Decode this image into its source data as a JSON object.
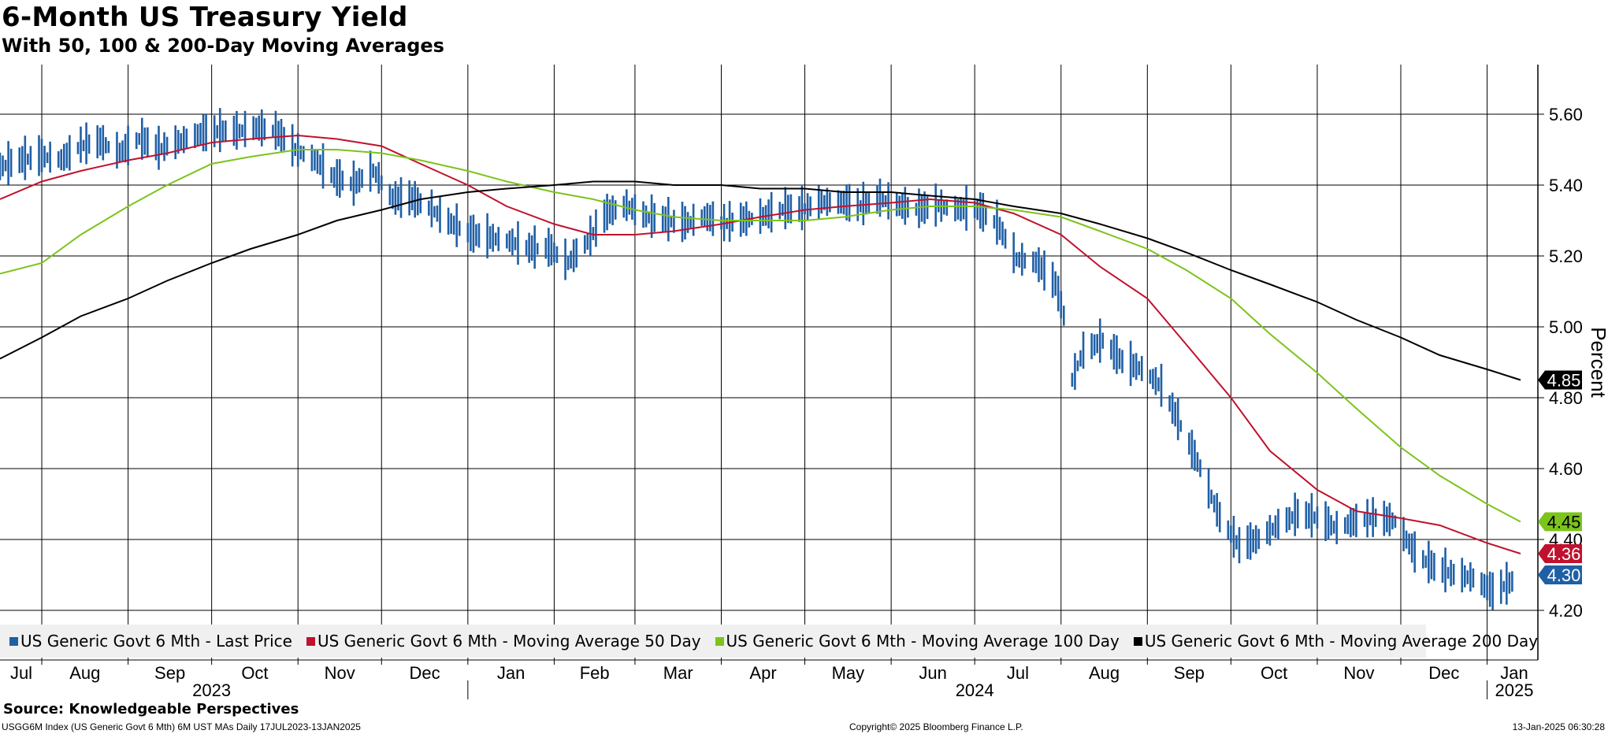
{
  "title": "6-Month US Treasury Yield",
  "subtitle": "With 50, 100 & 200-Day Moving Averages",
  "source": "Source: Knowledgeable Perspectives",
  "footer_left": "USGG6M Index (US Generic Govt 6 Mth) 6M UST MAs  Daily 17JUL2023-13JAN2025",
  "footer_mid": "Copyright© 2025 Bloomberg Finance L.P.",
  "footer_right": "13-Jan-2025 06:30:28",
  "colors": {
    "price": "#1f5fa6",
    "ma50": "#c0122e",
    "ma100": "#7cc41c",
    "ma200": "#000000"
  },
  "chart_data": {
    "type": "line",
    "ylabel": "Percent",
    "ylim": [
      4.06,
      5.74
    ],
    "yticks": [
      "4.20",
      "4.40",
      "4.60",
      "4.80",
      "5.00",
      "5.20",
      "5.40",
      "5.60"
    ],
    "xlim": [
      "2023-07-17",
      "2025-01-13"
    ],
    "month_ticks": [
      {
        "label": "Jul",
        "date": "2023-07-01"
      },
      {
        "label": "Aug",
        "date": "2023-08-01"
      },
      {
        "label": "Sep",
        "date": "2023-09-01"
      },
      {
        "label": "Oct",
        "date": "2023-10-01"
      },
      {
        "label": "Nov",
        "date": "2023-11-01"
      },
      {
        "label": "Dec",
        "date": "2023-12-01"
      },
      {
        "label": "Jan",
        "date": "2024-01-01"
      },
      {
        "label": "Feb",
        "date": "2024-02-01"
      },
      {
        "label": "Mar",
        "date": "2024-03-01"
      },
      {
        "label": "Apr",
        "date": "2024-04-01"
      },
      {
        "label": "May",
        "date": "2024-05-01"
      },
      {
        "label": "Jun",
        "date": "2024-06-01"
      },
      {
        "label": "Jul",
        "date": "2024-07-01"
      },
      {
        "label": "Aug",
        "date": "2024-08-01"
      },
      {
        "label": "Sep",
        "date": "2024-09-01"
      },
      {
        "label": "Oct",
        "date": "2024-10-01"
      },
      {
        "label": "Nov",
        "date": "2024-11-01"
      },
      {
        "label": "Dec",
        "date": "2024-12-01"
      },
      {
        "label": "Jan",
        "date": "2025-01-01"
      }
    ],
    "year_labels": [
      {
        "label": "2023",
        "date": "2023-10-01"
      },
      {
        "label": "2024",
        "date": "2024-07-01"
      },
      {
        "label": "2025",
        "date": "2025-01-08"
      }
    ],
    "year_separators": [
      "2024-01-01",
      "2025-01-01"
    ],
    "grid": true,
    "legend_position": "bottom",
    "series": [
      {
        "name": "US Generic Govt 6 Mth - Last Price",
        "color_key": "price",
        "style": "bars",
        "last_label": "4.30",
        "points": [
          [
            "2023-07-17",
            5.45
          ],
          [
            "2023-07-25",
            5.47
          ],
          [
            "2023-08-01",
            5.48
          ],
          [
            "2023-08-08",
            5.47
          ],
          [
            "2023-08-15",
            5.51
          ],
          [
            "2023-08-22",
            5.52
          ],
          [
            "2023-08-29",
            5.49
          ],
          [
            "2023-09-05",
            5.53
          ],
          [
            "2023-09-12",
            5.5
          ],
          [
            "2023-09-19",
            5.52
          ],
          [
            "2023-09-26",
            5.54
          ],
          [
            "2023-10-03",
            5.55
          ],
          [
            "2023-10-10",
            5.55
          ],
          [
            "2023-10-17",
            5.56
          ],
          [
            "2023-10-24",
            5.55
          ],
          [
            "2023-10-31",
            5.5
          ],
          [
            "2023-11-07",
            5.47
          ],
          [
            "2023-11-14",
            5.42
          ],
          [
            "2023-11-21",
            5.4
          ],
          [
            "2023-11-28",
            5.44
          ],
          [
            "2023-12-05",
            5.36
          ],
          [
            "2023-12-12",
            5.36
          ],
          [
            "2023-12-19",
            5.33
          ],
          [
            "2023-12-26",
            5.29
          ],
          [
            "2024-01-02",
            5.26
          ],
          [
            "2024-01-09",
            5.25
          ],
          [
            "2024-01-16",
            5.24
          ],
          [
            "2024-01-23",
            5.22
          ],
          [
            "2024-01-30",
            5.22
          ],
          [
            "2024-02-06",
            5.18
          ],
          [
            "2024-02-13",
            5.24
          ],
          [
            "2024-02-20",
            5.32
          ],
          [
            "2024-02-27",
            5.34
          ],
          [
            "2024-03-05",
            5.31
          ],
          [
            "2024-03-12",
            5.3
          ],
          [
            "2024-03-19",
            5.29
          ],
          [
            "2024-03-26",
            5.31
          ],
          [
            "2024-04-02",
            5.29
          ],
          [
            "2024-04-09",
            5.3
          ],
          [
            "2024-04-16",
            5.31
          ],
          [
            "2024-04-23",
            5.33
          ],
          [
            "2024-04-30",
            5.33
          ],
          [
            "2024-05-07",
            5.35
          ],
          [
            "2024-05-14",
            5.35
          ],
          [
            "2024-05-21",
            5.34
          ],
          [
            "2024-05-28",
            5.36
          ],
          [
            "2024-06-04",
            5.34
          ],
          [
            "2024-06-11",
            5.33
          ],
          [
            "2024-06-18",
            5.34
          ],
          [
            "2024-06-25",
            5.33
          ],
          [
            "2024-07-02",
            5.33
          ],
          [
            "2024-07-09",
            5.29
          ],
          [
            "2024-07-16",
            5.19
          ],
          [
            "2024-07-23",
            5.18
          ],
          [
            "2024-07-30",
            5.12
          ],
          [
            "2024-08-02",
            5.03
          ],
          [
            "2024-08-05",
            4.85
          ],
          [
            "2024-08-09",
            4.93
          ],
          [
            "2024-08-16",
            4.96
          ],
          [
            "2024-08-23",
            4.9
          ],
          [
            "2024-08-30",
            4.88
          ],
          [
            "2024-09-06",
            4.83
          ],
          [
            "2024-09-13",
            4.72
          ],
          [
            "2024-09-20",
            4.6
          ],
          [
            "2024-09-27",
            4.46
          ],
          [
            "2024-10-04",
            4.38
          ],
          [
            "2024-10-11",
            4.4
          ],
          [
            "2024-10-18",
            4.44
          ],
          [
            "2024-10-25",
            4.47
          ],
          [
            "2024-11-01",
            4.46
          ],
          [
            "2024-11-08",
            4.43
          ],
          [
            "2024-11-15",
            4.45
          ],
          [
            "2024-11-22",
            4.46
          ],
          [
            "2024-11-29",
            4.45
          ],
          [
            "2024-12-06",
            4.36
          ],
          [
            "2024-12-13",
            4.32
          ],
          [
            "2024-12-20",
            4.3
          ],
          [
            "2024-12-27",
            4.29
          ],
          [
            "2025-01-03",
            4.25
          ],
          [
            "2025-01-10",
            4.28
          ],
          [
            "2025-01-13",
            4.3
          ]
        ]
      },
      {
        "name": "US Generic Govt 6 Mth - Moving Average 50 Day",
        "color_key": "ma50",
        "style": "line",
        "last_label": "4.36",
        "points": [
          [
            "2023-07-17",
            5.36
          ],
          [
            "2023-08-01",
            5.41
          ],
          [
            "2023-08-15",
            5.44
          ],
          [
            "2023-09-01",
            5.47
          ],
          [
            "2023-09-15",
            5.49
          ],
          [
            "2023-10-01",
            5.52
          ],
          [
            "2023-10-15",
            5.53
          ],
          [
            "2023-11-01",
            5.54
          ],
          [
            "2023-11-15",
            5.53
          ],
          [
            "2023-12-01",
            5.51
          ],
          [
            "2023-12-15",
            5.46
          ],
          [
            "2024-01-01",
            5.4
          ],
          [
            "2024-01-15",
            5.34
          ],
          [
            "2024-02-01",
            5.29
          ],
          [
            "2024-02-15",
            5.26
          ],
          [
            "2024-03-01",
            5.26
          ],
          [
            "2024-03-15",
            5.27
          ],
          [
            "2024-04-01",
            5.29
          ],
          [
            "2024-04-15",
            5.31
          ],
          [
            "2024-05-01",
            5.33
          ],
          [
            "2024-05-15",
            5.34
          ],
          [
            "2024-06-01",
            5.35
          ],
          [
            "2024-06-15",
            5.36
          ],
          [
            "2024-07-01",
            5.35
          ],
          [
            "2024-07-15",
            5.32
          ],
          [
            "2024-08-01",
            5.26
          ],
          [
            "2024-08-15",
            5.17
          ],
          [
            "2024-09-01",
            5.08
          ],
          [
            "2024-09-15",
            4.95
          ],
          [
            "2024-10-01",
            4.8
          ],
          [
            "2024-10-15",
            4.65
          ],
          [
            "2024-11-01",
            4.54
          ],
          [
            "2024-11-15",
            4.48
          ],
          [
            "2024-12-01",
            4.46
          ],
          [
            "2024-12-15",
            4.44
          ],
          [
            "2025-01-01",
            4.39
          ],
          [
            "2025-01-13",
            4.36
          ]
        ]
      },
      {
        "name": "US Generic Govt 6 Mth - Moving Average 100 Day",
        "color_key": "ma100",
        "style": "line",
        "last_label": "4.45",
        "points": [
          [
            "2023-07-17",
            5.15
          ],
          [
            "2023-08-01",
            5.18
          ],
          [
            "2023-08-15",
            5.26
          ],
          [
            "2023-09-01",
            5.34
          ],
          [
            "2023-09-15",
            5.4
          ],
          [
            "2023-10-01",
            5.46
          ],
          [
            "2023-10-15",
            5.48
          ],
          [
            "2023-11-01",
            5.5
          ],
          [
            "2023-11-15",
            5.5
          ],
          [
            "2023-12-01",
            5.49
          ],
          [
            "2023-12-15",
            5.47
          ],
          [
            "2024-01-01",
            5.44
          ],
          [
            "2024-01-15",
            5.41
          ],
          [
            "2024-02-01",
            5.38
          ],
          [
            "2024-02-15",
            5.36
          ],
          [
            "2024-03-01",
            5.33
          ],
          [
            "2024-03-15",
            5.31
          ],
          [
            "2024-04-01",
            5.3
          ],
          [
            "2024-04-15",
            5.3
          ],
          [
            "2024-05-01",
            5.3
          ],
          [
            "2024-05-15",
            5.31
          ],
          [
            "2024-06-01",
            5.33
          ],
          [
            "2024-06-15",
            5.34
          ],
          [
            "2024-07-01",
            5.34
          ],
          [
            "2024-07-15",
            5.33
          ],
          [
            "2024-08-01",
            5.31
          ],
          [
            "2024-08-15",
            5.27
          ],
          [
            "2024-09-01",
            5.22
          ],
          [
            "2024-09-15",
            5.16
          ],
          [
            "2024-10-01",
            5.08
          ],
          [
            "2024-10-15",
            4.98
          ],
          [
            "2024-11-01",
            4.87
          ],
          [
            "2024-11-15",
            4.77
          ],
          [
            "2024-12-01",
            4.66
          ],
          [
            "2024-12-15",
            4.58
          ],
          [
            "2025-01-01",
            4.5
          ],
          [
            "2025-01-13",
            4.45
          ]
        ]
      },
      {
        "name": "US Generic Govt 6 Mth - Moving Average 200 Day",
        "color_key": "ma200",
        "style": "line",
        "last_label": "4.85",
        "points": [
          [
            "2023-07-17",
            4.91
          ],
          [
            "2023-08-01",
            4.97
          ],
          [
            "2023-08-15",
            5.03
          ],
          [
            "2023-09-01",
            5.08
          ],
          [
            "2023-09-15",
            5.13
          ],
          [
            "2023-10-01",
            5.18
          ],
          [
            "2023-10-15",
            5.22
          ],
          [
            "2023-11-01",
            5.26
          ],
          [
            "2023-11-15",
            5.3
          ],
          [
            "2023-12-01",
            5.33
          ],
          [
            "2023-12-15",
            5.36
          ],
          [
            "2024-01-01",
            5.38
          ],
          [
            "2024-01-15",
            5.39
          ],
          [
            "2024-02-01",
            5.4
          ],
          [
            "2024-02-15",
            5.41
          ],
          [
            "2024-03-01",
            5.41
          ],
          [
            "2024-03-15",
            5.4
          ],
          [
            "2024-04-01",
            5.4
          ],
          [
            "2024-04-15",
            5.39
          ],
          [
            "2024-05-01",
            5.39
          ],
          [
            "2024-05-15",
            5.38
          ],
          [
            "2024-06-01",
            5.38
          ],
          [
            "2024-06-15",
            5.37
          ],
          [
            "2024-07-01",
            5.36
          ],
          [
            "2024-07-15",
            5.34
          ],
          [
            "2024-08-01",
            5.32
          ],
          [
            "2024-08-15",
            5.29
          ],
          [
            "2024-09-01",
            5.25
          ],
          [
            "2024-09-15",
            5.21
          ],
          [
            "2024-10-01",
            5.16
          ],
          [
            "2024-10-15",
            5.12
          ],
          [
            "2024-11-01",
            5.07
          ],
          [
            "2024-11-15",
            5.02
          ],
          [
            "2024-12-01",
            4.97
          ],
          [
            "2024-12-15",
            4.92
          ],
          [
            "2025-01-01",
            4.88
          ],
          [
            "2025-01-13",
            4.85
          ]
        ]
      }
    ]
  }
}
